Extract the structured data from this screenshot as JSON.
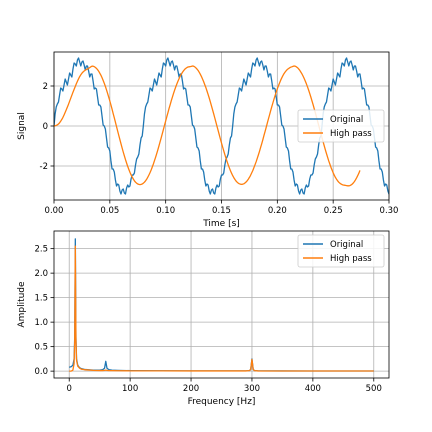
{
  "chart_data": [
    {
      "type": "line",
      "xlabel": "Time [s]",
      "ylabel": "Signal",
      "xlim": [
        0,
        0.3
      ],
      "ylim": [
        -3.7,
        3.7
      ],
      "xticks": [
        "0.00",
        "0.05",
        "0.10",
        "0.15",
        "0.20",
        "0.25",
        "0.30"
      ],
      "yticks": [
        "-2",
        "0",
        "2"
      ],
      "grid": true,
      "legend_position": "center-right",
      "sample_interval": 0.001,
      "series": [
        {
          "name": "Original",
          "color": "#1f77b4",
          "x_start": 0.0,
          "x_step": 0.001,
          "y": [
            0.0,
            0.6,
            0.95,
            1.1,
            1.2,
            1.55,
            1.9,
            1.85,
            1.75,
            2.05,
            2.35,
            2.2,
            2.05,
            2.35,
            2.65,
            2.55,
            2.45,
            2.85,
            3.15,
            3.1,
            3.0,
            3.3,
            3.4,
            3.2,
            3.0,
            3.2,
            3.25,
            3.05,
            2.8,
            3.0,
            3.0,
            2.75,
            2.45,
            2.6,
            2.6,
            2.25,
            1.85,
            1.9,
            1.85,
            1.45,
            1.05,
            1.05,
            0.95,
            0.5,
            0.05,
            0.0,
            -0.15,
            -0.6,
            -1.05,
            -1.1,
            -1.25,
            -1.75,
            -2.15,
            -2.15,
            -2.3,
            -2.7,
            -3.0,
            -2.9,
            -2.95,
            -3.25,
            -3.4,
            -3.2,
            -3.15,
            -3.35,
            -3.4,
            -3.1,
            -2.95,
            -3.05,
            -3.0,
            -2.65,
            -2.45,
            -2.45,
            -2.35,
            -1.95,
            -1.65,
            -1.55,
            -1.4,
            -0.95,
            -0.6,
            -0.5,
            0.0,
            0.6,
            0.95,
            1.1,
            1.2,
            1.55,
            1.9,
            1.85,
            1.75,
            2.05,
            2.35,
            2.2,
            2.05,
            2.35,
            2.65,
            2.55,
            2.45,
            2.85,
            3.15,
            3.1,
            3.0,
            3.3,
            3.4,
            3.2,
            3.0,
            3.2,
            3.25,
            3.05,
            2.8,
            3.0,
            3.0,
            2.75,
            2.45,
            2.6,
            2.6,
            2.25,
            1.85,
            1.9,
            1.85,
            1.45,
            1.05,
            1.05,
            0.95,
            0.5,
            0.05,
            0.0,
            -0.15,
            -0.6,
            -1.05,
            -1.1,
            -1.25,
            -1.75,
            -2.15,
            -2.15,
            -2.3,
            -2.7,
            -3.0,
            -2.9,
            -2.95,
            -3.25,
            -3.4,
            -3.2,
            -3.15,
            -3.35,
            -3.4,
            -3.1,
            -2.95,
            -3.05,
            -3.0,
            -2.65,
            -2.45,
            -2.45,
            -2.35,
            -1.95,
            -1.65,
            -1.55,
            -1.4,
            -0.95,
            -0.6,
            -0.5,
            0.0,
            0.6,
            0.95,
            1.1,
            1.2,
            1.55,
            1.9,
            1.85,
            1.75,
            2.05,
            2.35,
            2.2,
            2.05,
            2.35,
            2.65,
            2.55,
            2.45,
            2.85,
            3.15,
            3.1,
            3.0,
            3.3,
            3.4,
            3.2,
            3.0,
            3.2,
            3.25,
            3.05,
            2.8,
            3.0,
            3.0,
            2.75,
            2.45,
            2.6,
            2.6,
            2.25,
            1.85,
            1.9,
            1.85,
            1.45,
            1.05,
            1.05,
            0.95,
            0.5,
            0.05,
            0.0,
            -0.15,
            -0.6,
            -1.05,
            -1.1,
            -1.25,
            -1.75,
            -2.15,
            -2.15,
            -2.3,
            -2.7,
            -3.0,
            -2.9,
            -2.95,
            -3.25,
            -3.4,
            -3.2,
            -3.15,
            -3.35,
            -3.4,
            -3.1,
            -2.95,
            -3.05,
            -3.0,
            -2.65,
            -2.45,
            -2.45,
            -2.35,
            -1.95,
            -1.65,
            -1.55,
            -1.4,
            -0.95,
            -0.6,
            -0.5,
            0.0,
            0.6,
            0.95,
            1.1,
            1.2,
            1.55,
            1.9,
            1.85,
            1.75,
            2.05,
            2.35,
            2.2,
            2.05,
            2.35,
            2.65,
            2.55,
            2.45,
            2.85,
            3.15,
            3.1,
            3.0,
            3.3,
            3.4,
            3.2,
            3.0,
            3.2,
            3.25,
            3.05,
            2.8,
            3.0,
            3.0,
            2.75,
            2.45,
            2.6,
            2.6,
            2.25,
            1.85,
            1.9,
            1.85,
            1.45,
            1.05,
            1.05,
            0.95,
            0.5,
            0.05,
            0.0,
            -0.15,
            -0.6,
            -1.05,
            -1.1,
            -1.25,
            -1.75,
            -2.15,
            -2.15,
            -2.3,
            -2.7,
            -3.0,
            -2.9,
            -2.95,
            -3.25,
            -3.4,
            -3.2,
            -3.15,
            -3.35,
            -3.4,
            -3.1,
            -2.95,
            -3.05,
            -3.0,
            -2.65,
            -2.45,
            -2.45,
            -2.35,
            -1.95,
            -1.65,
            -1.55,
            -1.4,
            -0.95,
            -0.6,
            0.1
          ]
        },
        {
          "name": "High pass",
          "color": "#ff7f0e",
          "x_start": 0.0,
          "x_step": 0.001,
          "y": [
            0.0,
            0.01,
            0.03,
            0.06,
            0.1,
            0.16,
            0.24,
            0.33,
            0.43,
            0.55,
            0.68,
            0.81,
            0.95,
            1.09,
            1.24,
            1.39,
            1.54,
            1.69,
            1.83,
            1.97,
            2.11,
            2.24,
            2.36,
            2.47,
            2.56,
            2.64,
            2.7,
            2.75,
            2.79,
            2.82,
            2.85,
            2.88,
            2.92,
            2.96,
            2.99,
            2.99,
            2.97,
            2.93,
            2.88,
            2.82,
            2.74,
            2.64,
            2.54,
            2.42,
            2.28,
            2.14,
            1.98,
            1.81,
            1.63,
            1.44,
            1.25,
            1.05,
            0.84,
            0.62,
            0.41,
            0.19,
            -0.03,
            -0.25,
            -0.47,
            -0.68,
            -0.89,
            -1.1,
            -1.3,
            -1.49,
            -1.68,
            -1.85,
            -2.02,
            -2.17,
            -2.31,
            -2.44,
            -2.55,
            -2.65,
            -2.74,
            -2.81,
            -2.86,
            -2.9,
            -2.92,
            -2.93,
            -2.92,
            -2.9,
            -2.86,
            -2.81,
            -2.74,
            -2.66,
            -2.56,
            -2.45,
            -2.33,
            -2.2,
            -2.05,
            -1.9,
            -1.73,
            -1.56,
            -1.38,
            -1.19,
            -0.99,
            -0.79,
            -0.59,
            -0.38,
            -0.17,
            0.04,
            0.25,
            0.46,
            0.66,
            0.87,
            1.06,
            1.26,
            1.44,
            1.62,
            1.79,
            1.95,
            2.1,
            2.24,
            2.37,
            2.49,
            2.59,
            2.68,
            2.76,
            2.83,
            2.88,
            2.92,
            2.95,
            2.96,
            2.97,
            2.98,
            3.0,
            2.99,
            2.96,
            2.91,
            2.85,
            2.78,
            2.69,
            2.59,
            2.48,
            2.35,
            2.22,
            2.07,
            1.92,
            1.75,
            1.58,
            1.4,
            1.21,
            1.01,
            0.81,
            0.61,
            0.4,
            0.19,
            -0.02,
            -0.23,
            -0.44,
            -0.65,
            -0.85,
            -1.05,
            -1.24,
            -1.43,
            -1.61,
            -1.78,
            -1.94,
            -2.09,
            -2.23,
            -2.36,
            -2.48,
            -2.58,
            -2.67,
            -2.75,
            -2.81,
            -2.86,
            -2.89,
            -2.91,
            -2.92,
            -2.91,
            -2.89,
            -2.85,
            -2.8,
            -2.74,
            -2.66,
            -2.57,
            -2.47,
            -2.35,
            -2.23,
            -2.09,
            -1.94,
            -1.79,
            -1.62,
            -1.45,
            -1.27,
            -1.08,
            -0.89,
            -0.69,
            -0.48,
            -0.28,
            -0.07,
            0.14,
            0.35,
            0.55,
            0.76,
            0.96,
            1.15,
            1.34,
            1.52,
            1.69,
            1.86,
            2.01,
            2.15,
            2.29,
            2.41,
            2.52,
            2.62,
            2.7,
            2.77,
            2.83,
            2.87,
            2.91,
            2.94,
            2.96,
            2.98,
            3.0,
            2.99,
            2.96,
            2.92,
            2.86,
            2.79,
            2.7,
            2.61,
            2.5,
            2.38,
            2.25,
            2.11,
            1.96,
            1.8,
            1.63,
            1.45,
            1.26,
            1.07,
            0.87,
            0.67,
            0.46,
            0.25,
            0.04,
            -0.17,
            -0.38,
            -0.59,
            -0.79,
            -0.99,
            -1.19,
            -1.38,
            -1.56,
            -1.74,
            -1.9,
            -2.06,
            -2.2,
            -2.34,
            -2.46,
            -2.57,
            -2.66,
            -2.74,
            -2.81,
            -2.86,
            -2.9,
            -2.93,
            -2.95,
            -2.96,
            -2.97,
            -2.98,
            -2.99,
            -2.99,
            -2.98,
            -2.95,
            -2.91,
            -2.85,
            -2.78,
            -2.69,
            -2.59,
            -2.48,
            -2.36,
            -2.22
          ]
        }
      ]
    },
    {
      "type": "line",
      "xlabel": "Frequency [Hz]",
      "ylabel": "Amplitude",
      "xlim": [
        -25,
        525
      ],
      "ylim": [
        -0.14,
        2.86
      ],
      "xticks": [
        "0",
        "100",
        "200",
        "300",
        "400",
        "500"
      ],
      "yticks": [
        "0.0",
        "0.5",
        "1.0",
        "1.5",
        "2.0",
        "2.5"
      ],
      "grid": true,
      "legend_position": "top-right",
      "series": [
        {
          "name": "Original",
          "color": "#1f77b4",
          "x": [
            0,
            3,
            6,
            8,
            9,
            10,
            11,
            12,
            14,
            17,
            20,
            25,
            30,
            40,
            50,
            55,
            58,
            60,
            62,
            65,
            70,
            80,
            100,
            150,
            200,
            250,
            290,
            296,
            298,
            300,
            302,
            304,
            310,
            350,
            400,
            450,
            500
          ],
          "y": [
            0.08,
            0.09,
            0.12,
            0.25,
            0.7,
            2.7,
            0.7,
            0.25,
            0.12,
            0.07,
            0.05,
            0.035,
            0.03,
            0.02,
            0.02,
            0.03,
            0.06,
            0.2,
            0.06,
            0.03,
            0.02,
            0.015,
            0.01,
            0.008,
            0.006,
            0.005,
            0.005,
            0.01,
            0.04,
            0.25,
            0.04,
            0.01,
            0.005,
            0.004,
            0.003,
            0.003,
            0.003
          ]
        },
        {
          "name": "High pass",
          "color": "#ff7f0e",
          "x": [
            0,
            3,
            6,
            8,
            9,
            10,
            11,
            12,
            14,
            17,
            20,
            25,
            30,
            40,
            50,
            55,
            58,
            60,
            62,
            65,
            70,
            80,
            100,
            150,
            200,
            250,
            290,
            296,
            298,
            300,
            302,
            304,
            310,
            350,
            400,
            450,
            500
          ],
          "y": [
            0.0,
            0.0,
            0.02,
            0.15,
            0.6,
            2.55,
            0.65,
            0.22,
            0.1,
            0.06,
            0.04,
            0.03,
            0.025,
            0.015,
            0.012,
            0.012,
            0.015,
            0.02,
            0.015,
            0.012,
            0.01,
            0.008,
            0.006,
            0.005,
            0.004,
            0.004,
            0.004,
            0.01,
            0.04,
            0.24,
            0.04,
            0.01,
            0.004,
            0.003,
            0.003,
            0.003,
            0.003
          ]
        }
      ]
    }
  ]
}
